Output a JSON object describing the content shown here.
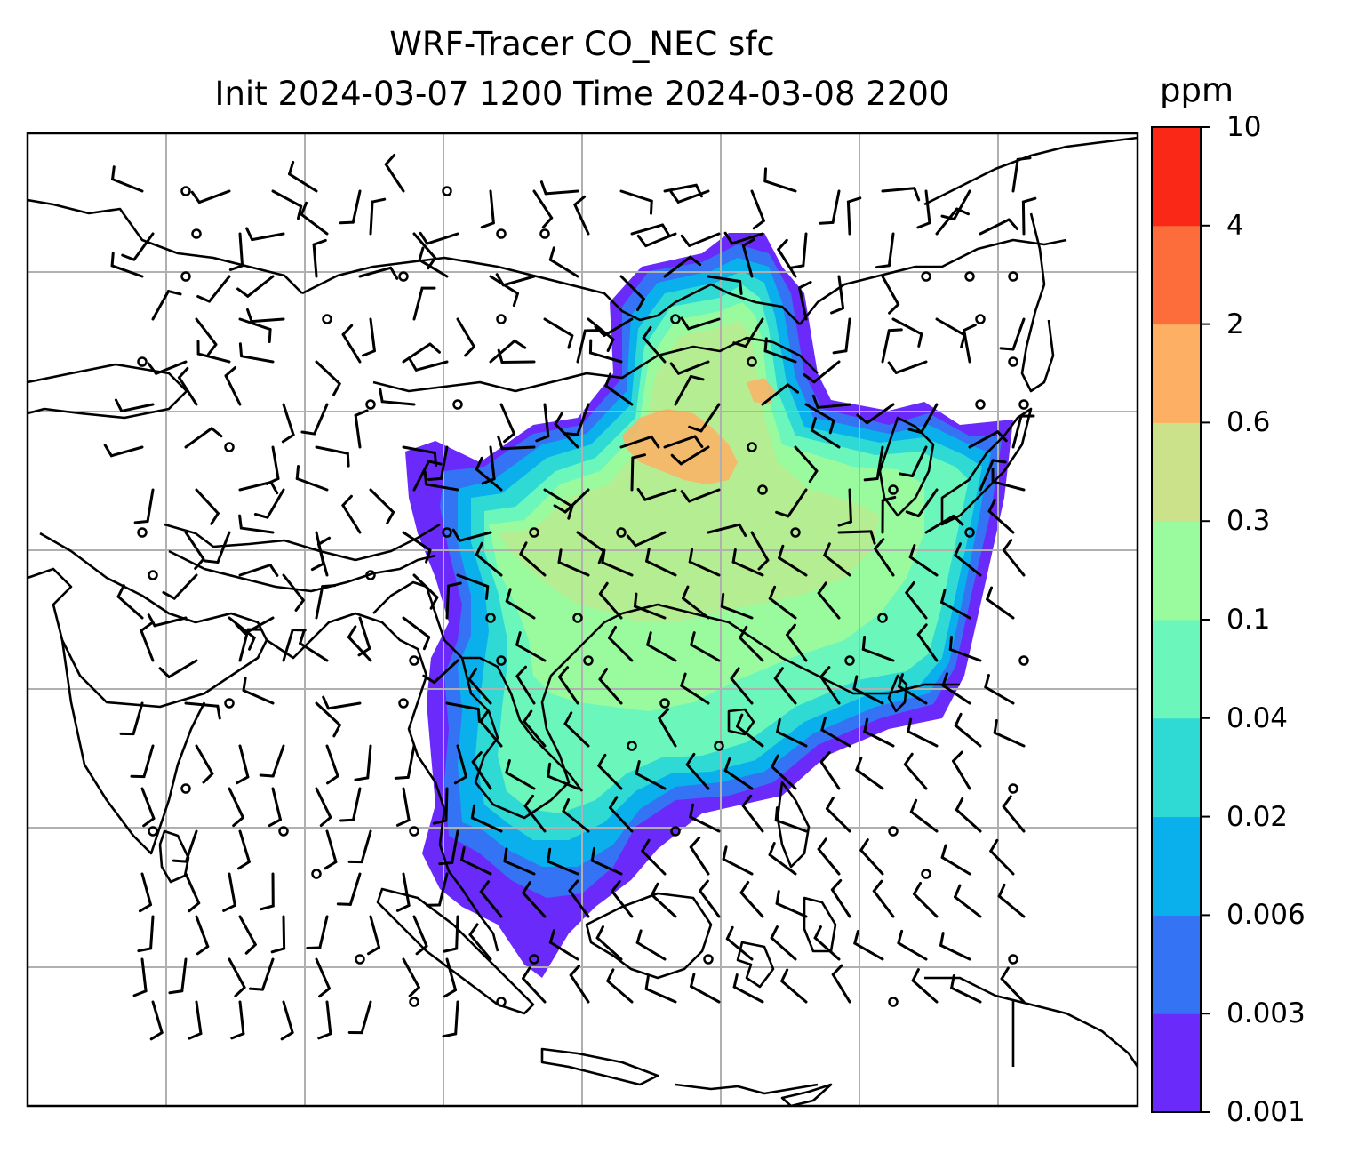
{
  "title": {
    "line1": "WRF-Tracer CO_NEC sfc",
    "line2": "Init 2024-03-07 1200 Time 2024-03-08 2200"
  },
  "colorbar": {
    "unit": "ppm",
    "levels": [
      "0.001",
      "0.003",
      "0.006",
      "0.02",
      "0.04",
      "0.1",
      "0.3",
      "0.6",
      "2",
      "4",
      "10"
    ],
    "colors": [
      "#6a2bfa",
      "#3474f4",
      "#0ab0eb",
      "#2fdad4",
      "#6bf6bc",
      "#9afa9e",
      "#cce28a",
      "#fdb063",
      "#fd6d3b",
      "#fa2917"
    ]
  },
  "map": {
    "gridlines": true,
    "coastlines": true,
    "wind_barbs": true,
    "colormap": "rainbow"
  }
}
